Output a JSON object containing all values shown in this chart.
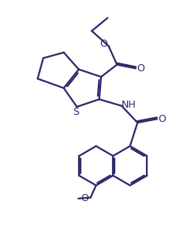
{
  "bg_color": "#ffffff",
  "line_color": "#2b2b6b",
  "line_width": 1.6,
  "fig_width": 2.42,
  "fig_height": 3.17,
  "dpi": 100,
  "xlim": [
    0,
    10
  ],
  "ylim": [
    0,
    13
  ]
}
